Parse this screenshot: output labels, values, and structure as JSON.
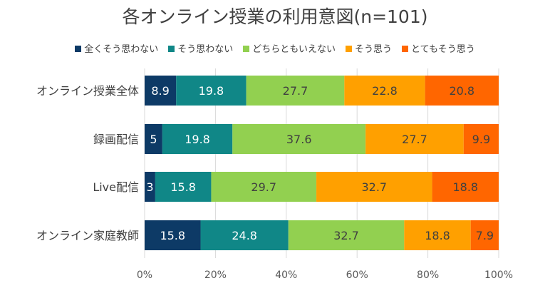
{
  "chart_data": {
    "type": "bar",
    "orientation": "horizontal",
    "stacked": true,
    "title": "各オンライン授業の利用意図(n=101)",
    "categories": [
      "オンライン授業全体",
      "録画配信",
      "Live配信",
      "オンライン家庭教師"
    ],
    "series": [
      {
        "name": "全くそう思わない",
        "color": "#0d3a66",
        "values": [
          8.9,
          5,
          3,
          15.8
        ]
      },
      {
        "name": "そう思わない",
        "color": "#108787",
        "values": [
          19.8,
          19.8,
          15.8,
          24.8
        ]
      },
      {
        "name": "どちらともいえない",
        "color": "#92d050",
        "values": [
          27.7,
          37.6,
          29.7,
          32.7
        ]
      },
      {
        "name": "そう思う",
        "color": "#ffa000",
        "values": [
          22.8,
          27.7,
          32.7,
          18.8
        ]
      },
      {
        "name": "とてもそう思う",
        "color": "#ff6600",
        "values": [
          20.8,
          9.9,
          18.8,
          7.9
        ]
      }
    ],
    "data_labels": [
      [
        "8.9",
        "19.8",
        "27.7",
        "22.8",
        "20.8"
      ],
      [
        "5",
        "19.8",
        "37.6",
        "27.7",
        "9.9"
      ],
      [
        "3",
        "15.8",
        "29.7",
        "32.7",
        "18.8"
      ],
      [
        "15.8",
        "24.8",
        "32.7",
        "18.8",
        "7.9"
      ]
    ],
    "xlim": [
      0,
      100
    ],
    "x_ticks": [
      "0%",
      "20%",
      "40%",
      "60%",
      "80%",
      "100%"
    ],
    "grid": true,
    "legend_position": "top"
  }
}
